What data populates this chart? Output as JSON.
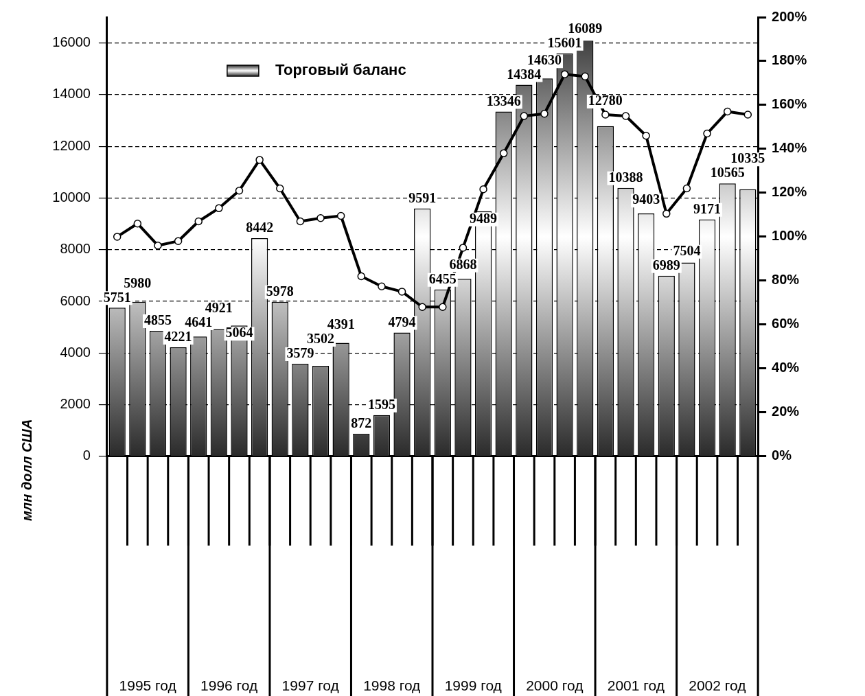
{
  "chart_data": {
    "type": "bar",
    "ylabel": "млн долл США",
    "categories": [
      null,
      null,
      null,
      null,
      null,
      null,
      null,
      null,
      null,
      null,
      null,
      null,
      null,
      null,
      null,
      null,
      null,
      null,
      null,
      null,
      null,
      null,
      null,
      null,
      null,
      null,
      null,
      null,
      null,
      null,
      null,
      null
    ],
    "series": [
      {
        "name": "Торговый баланс",
        "color": "#2a2a2a",
        "values": [
          5751,
          5980,
          4855,
          4221,
          4641,
          4921,
          5064,
          8442,
          5978,
          3579,
          3502,
          4391,
          872,
          1595,
          4794,
          9591,
          6455,
          6868,
          9489,
          13346,
          14384,
          14630,
          15601,
          16089,
          12780,
          10388,
          9403,
          6989,
          7504,
          9171,
          10565,
          10335
        ],
        "value_labels": [
          "5751",
          "5980",
          "4855",
          "4221",
          "4641",
          "4921",
          "5064",
          "8442",
          "5978",
          "3579",
          "3502",
          "4391",
          "872",
          "1595",
          "4794",
          "9591",
          "6455",
          "6868",
          "9489",
          "13346",
          "14384",
          "14630",
          "15601",
          "16089",
          "12780",
          "10388",
          "9403",
          "6989",
          "7504",
          "9171",
          "10565",
          "10335"
        ]
      },
      {
        "type": "line",
        "axis": "y2",
        "color": "#000000",
        "marker": "circle",
        "line_style": "solid",
        "values": [
          100,
          106,
          96,
          98,
          107,
          113,
          121,
          135,
          122,
          107,
          108.5,
          109.5,
          82,
          77.4,
          75,
          68,
          68,
          95,
          121.6,
          138,
          155,
          156,
          174,
          173,
          155.6,
          155,
          146,
          110.5,
          122,
          147,
          157,
          155.6
        ]
      }
    ],
    "ylim": [
      0,
      17000
    ],
    "yticks": [
      0,
      2000,
      4000,
      6000,
      8000,
      10000,
      12000,
      14000,
      16000
    ],
    "y2lim": [
      0,
      200
    ],
    "y2ticks": [
      {
        "value": 0,
        "label": "0%"
      },
      {
        "value": 20,
        "label": "20%"
      },
      {
        "value": 40,
        "label": "40%"
      },
      {
        "value": 60,
        "label": "60%"
      },
      {
        "value": 80,
        "label": "80%"
      },
      {
        "value": 100,
        "label": "100%"
      },
      {
        "value": 120,
        "label": "120%"
      },
      {
        "value": 140,
        "label": "140%"
      },
      {
        "value": 160,
        "label": "160%"
      },
      {
        "value": 180,
        "label": "180%"
      },
      {
        "value": 200,
        "label": "200%"
      }
    ],
    "grid": "y",
    "legend": "top left",
    "annotations": [
      "1995 год",
      "1996 год",
      "1997 год",
      "1998 год",
      "1999 год",
      "2000 год",
      "2001 год",
      "2002 год"
    ]
  }
}
